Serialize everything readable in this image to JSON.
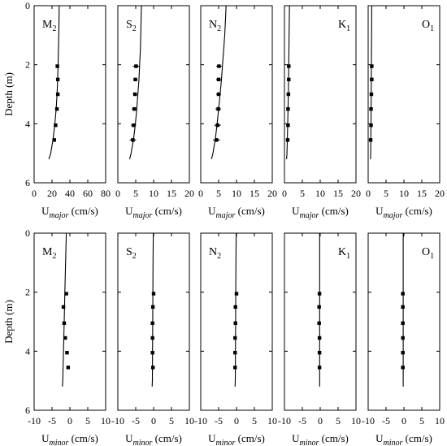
{
  "chart_data": [
    {
      "type": "scatter",
      "row": "major",
      "ylabel": "Depth (m)",
      "ylim": [
        0,
        6
      ],
      "yticks": [
        0,
        2,
        4,
        6
      ],
      "xlabel": {
        "main": "U",
        "sub": "major",
        "unit": " (cm/s)"
      },
      "panels": [
        {
          "label": "M",
          "sub": "2",
          "label_pos": "left",
          "xlim": [
            0,
            80
          ],
          "xticks": [
            0,
            20,
            40,
            60,
            80
          ],
          "model": {
            "depth": [
              0,
              0.5,
              1,
              1.5,
              2,
              2.5,
              3,
              3.5,
              4,
              4.5,
              5,
              5.2
            ],
            "u": [
              28,
              27.8,
              27.5,
              27.2,
              26.8,
              26.3,
              25.6,
              24.6,
              23.2,
              21.3,
              18.5,
              16.5
            ]
          },
          "obs": {
            "depth": [
              2.05,
              2.5,
              3.0,
              3.5,
              4.05,
              4.55
            ],
            "u": [
              26,
              26.5,
              26.5,
              25.5,
              24,
              22.5
            ],
            "err": [
              0,
              0,
              0,
              0,
              0,
              0
            ]
          }
        },
        {
          "label": "S",
          "sub": "2",
          "label_pos": "left",
          "xlim": [
            0,
            20
          ],
          "xticks": [
            0,
            5,
            10,
            15,
            20
          ],
          "model": {
            "depth": [
              0,
              0.5,
              1,
              1.5,
              2,
              2.5,
              3,
              3.5,
              4,
              4.5,
              5,
              5.2
            ],
            "u": [
              6.6,
              6.5,
              6.4,
              6.3,
              6.1,
              5.9,
              5.6,
              5.3,
              4.9,
              4.4,
              3.7,
              3.3
            ]
          },
          "obs": {
            "depth": [
              2.05,
              2.5,
              3.0,
              3.5,
              4.05,
              4.55
            ],
            "u": [
              5.1,
              4.9,
              4.8,
              4.6,
              4.4,
              4.2
            ],
            "err": [
              0.9,
              0.6,
              0.6,
              0.7,
              0.7,
              0.9
            ]
          }
        },
        {
          "label": "N",
          "sub": "2",
          "label_pos": "left",
          "xlim": [
            0,
            20
          ],
          "xticks": [
            0,
            5,
            10,
            15,
            20
          ],
          "model": {
            "depth": [
              0,
              0.5,
              1,
              1.5,
              2,
              2.5,
              3,
              3.5,
              4,
              4.5,
              5,
              5.2
            ],
            "u": [
              7.1,
              6.9,
              6.7,
              6.4,
              6.1,
              5.8,
              5.4,
              5.0,
              4.6,
              4.1,
              3.4,
              3.0
            ]
          },
          "obs": {
            "depth": [
              2.05,
              2.5,
              3.0,
              3.5,
              4.05,
              4.55
            ],
            "u": [
              5.1,
              5.0,
              5.0,
              4.9,
              4.7,
              4.4
            ],
            "err": [
              0.8,
              0.7,
              0.7,
              0.8,
              0.9,
              1.0
            ]
          }
        },
        {
          "label": "K",
          "sub": "1",
          "label_pos": "right",
          "xlim": [
            0,
            20
          ],
          "xticks": [
            0,
            5,
            10,
            15,
            20
          ],
          "model": {
            "depth": [
              0,
              1,
              2,
              3,
              4,
              5,
              5.2
            ],
            "u": [
              1.4,
              1.3,
              1.2,
              1.1,
              0.9,
              0.7,
              0.6
            ]
          },
          "obs": {
            "depth": [
              2.05,
              2.5,
              3.0,
              3.5,
              4.05,
              4.55
            ],
            "u": [
              1.2,
              1.2,
              1.1,
              1.0,
              1.0,
              0.9
            ],
            "err": [
              0,
              0,
              0,
              0,
              0,
              0
            ]
          }
        },
        {
          "label": "O",
          "sub": "1",
          "label_pos": "right",
          "xlim": [
            0,
            20
          ],
          "xticks": [
            0,
            5,
            10,
            15,
            20
          ],
          "model": {
            "depth": [
              0,
              1,
              2,
              3,
              4,
              5,
              5.2
            ],
            "u": [
              1.0,
              0.95,
              0.9,
              0.85,
              0.8,
              0.7,
              0.65
            ]
          },
          "obs": {
            "depth": [
              2.05,
              2.5,
              3.0,
              3.5,
              4.05,
              4.55
            ],
            "u": [
              1.0,
              1.0,
              0.9,
              0.8,
              0.8,
              0.7
            ],
            "err": [
              0,
              0,
              0,
              0,
              0,
              0
            ]
          }
        }
      ]
    },
    {
      "type": "scatter",
      "row": "minor",
      "ylabel": "Depth (m)",
      "ylim": [
        0,
        6
      ],
      "yticks": [
        0,
        2,
        4,
        6
      ],
      "xlabel": {
        "main": "U",
        "sub": "minor",
        "unit": " (cm/s)"
      },
      "panels": [
        {
          "label": "M",
          "sub": "2",
          "label_pos": "left",
          "xlim": [
            -10,
            10
          ],
          "xticks": [
            -10,
            -5,
            0,
            5,
            10
          ],
          "model": {
            "depth": [
              0,
              1,
              2,
              3,
              4,
              5,
              5.2
            ],
            "u": [
              -1.0,
              -1.2,
              -1.4,
              -1.6,
              -1.8,
              -2.0,
              -2.1
            ]
          },
          "obs": {
            "depth": [
              2.05,
              2.5,
              3.05,
              3.55,
              4.05,
              4.55
            ],
            "u": [
              -1.0,
              -1.8,
              -1.6,
              -1.3,
              -0.8,
              -0.5
            ],
            "err": [
              0,
              0,
              0,
              0,
              0,
              0
            ]
          }
        },
        {
          "label": "S",
          "sub": "2",
          "label_pos": "left",
          "xlim": [
            -10,
            10
          ],
          "xticks": [
            -10,
            -5,
            0,
            5,
            10
          ],
          "model": {
            "depth": [
              0,
              1,
              2,
              3,
              4,
              5,
              5.2
            ],
            "u": [
              -0.1,
              -0.15,
              -0.2,
              -0.25,
              -0.3,
              -0.35,
              -0.4
            ]
          },
          "obs": {
            "depth": [
              2.05,
              2.5,
              3.05,
              3.55,
              4.05,
              4.55
            ],
            "u": [
              0.0,
              -0.2,
              -0.3,
              -0.3,
              -0.3,
              -0.2
            ],
            "err": [
              0.3,
              0.3,
              0.3,
              0.3,
              0.3,
              0.3
            ]
          }
        },
        {
          "label": "N",
          "sub": "2",
          "label_pos": "left",
          "xlim": [
            -10,
            10
          ],
          "xticks": [
            -10,
            -5,
            0,
            5,
            10
          ],
          "model": {
            "depth": [
              0,
              1,
              2,
              3,
              4,
              5,
              5.2
            ],
            "u": [
              -0.1,
              -0.15,
              -0.2,
              -0.25,
              -0.3,
              -0.35,
              -0.4
            ]
          },
          "obs": {
            "depth": [
              2.05,
              2.5,
              3.05,
              3.55,
              4.05,
              4.55
            ],
            "u": [
              0.0,
              -0.3,
              -0.3,
              -0.4,
              -0.4,
              -0.4
            ],
            "err": [
              0.3,
              0.3,
              0.3,
              0.3,
              0.3,
              0.3
            ]
          }
        },
        {
          "label": "K",
          "sub": "1",
          "label_pos": "right",
          "xlim": [
            -10,
            10
          ],
          "xticks": [
            -10,
            -5,
            0,
            5,
            10
          ],
          "model": {
            "depth": [
              0,
              1,
              2,
              3,
              4,
              5,
              5.2
            ],
            "u": [
              -0.15,
              -0.15,
              -0.15,
              -0.15,
              -0.15,
              -0.15,
              -0.15
            ]
          },
          "obs": {
            "depth": [
              2.05,
              2.5,
              3.05,
              3.55,
              4.05,
              4.55
            ],
            "u": [
              -0.2,
              -0.3,
              -0.3,
              -0.2,
              -0.2,
              -0.2
            ],
            "err": [
              0,
              0,
              0,
              0,
              0,
              0
            ]
          }
        },
        {
          "label": "O",
          "sub": "1",
          "label_pos": "right",
          "xlim": [
            -10,
            10
          ],
          "xticks": [
            -10,
            -5,
            0,
            5,
            10
          ],
          "model": {
            "depth": [
              0,
              1,
              2,
              3,
              4,
              5,
              5.2
            ],
            "u": [
              -0.2,
              -0.2,
              -0.2,
              -0.2,
              -0.2,
              -0.2,
              -0.2
            ]
          },
          "obs": {
            "depth": [
              2.05,
              2.5,
              3.05,
              3.55,
              4.05,
              4.55
            ],
            "u": [
              -0.3,
              -0.3,
              -0.3,
              -0.3,
              -0.3,
              -0.3
            ],
            "err": [
              0,
              0,
              0,
              0,
              0,
              0
            ]
          }
        }
      ]
    }
  ]
}
